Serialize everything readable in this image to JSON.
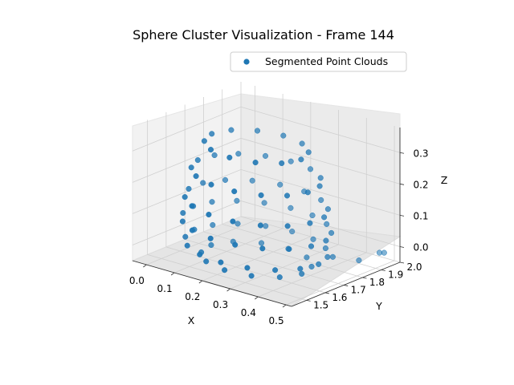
{
  "chart_data": {
    "type": "scatter",
    "projection": "3d",
    "title": "Sphere Cluster Visualization - Frame 144",
    "xlabel": "X",
    "ylabel": "Y",
    "zlabel": "Z",
    "xlim": [
      -0.05,
      0.52
    ],
    "ylim": [
      1.42,
      2.0
    ],
    "zlim": [
      -0.05,
      0.38
    ],
    "xticks": [
      "0.0",
      "0.1",
      "0.2",
      "0.3",
      "0.4",
      "0.5"
    ],
    "yticks": [
      "1.5",
      "1.6",
      "1.7",
      "1.8",
      "1.9",
      "2.0"
    ],
    "zticks": [
      "0.0",
      "0.1",
      "0.2",
      "0.3"
    ],
    "grid": true,
    "legend_position": "upper right",
    "series": [
      {
        "name": "Segmented Point Clouds",
        "color": "#1f77b4",
        "rings": [
          {
            "z": 0.32,
            "count": 12,
            "r": 0.16
          },
          {
            "z": 0.23,
            "count": 15,
            "r": 0.2
          },
          {
            "z": 0.14,
            "count": 16,
            "r": 0.22
          },
          {
            "z": 0.07,
            "count": 17,
            "r": 0.23
          },
          {
            "z": 0.0,
            "count": 16,
            "r": 0.22
          },
          {
            "z": -0.04,
            "count": 12,
            "r": 0.17
          }
        ],
        "center": {
          "x": 0.22,
          "y": 1.68
        },
        "outliers": [
          {
            "x": 0.46,
            "y": 1.98,
            "z": -0.03
          },
          {
            "x": 0.47,
            "y": 1.99,
            "z": -0.03
          },
          {
            "x": 0.44,
            "y": 1.9,
            "z": -0.04
          },
          {
            "x": 0.4,
            "y": 1.82,
            "z": -0.02
          }
        ]
      }
    ]
  },
  "legend": {
    "label": "Segmented Point Clouds"
  }
}
